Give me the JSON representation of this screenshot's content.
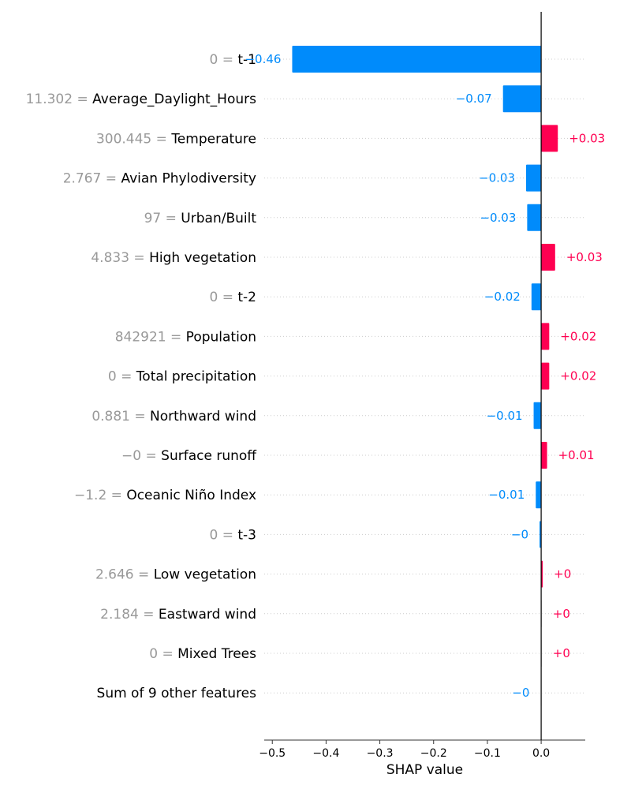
{
  "chart_data": {
    "type": "bar",
    "orientation": "horizontal",
    "xlabel": "SHAP value",
    "xlim": [
      -0.515,
      0.082
    ],
    "xticks": [
      -0.5,
      -0.4,
      -0.3,
      -0.2,
      -0.1,
      0.0
    ],
    "xtick_labels": [
      "−0.5",
      "−0.4",
      "−0.3",
      "−0.2",
      "−0.1",
      "0.0"
    ],
    "colors": {
      "positive": "#ff0051",
      "negative": "#008bfb",
      "zero": "#dddddd"
    },
    "features": [
      {
        "value": "0",
        "name": "t-1",
        "shap": -0.463,
        "label": "−0.46"
      },
      {
        "value": "11.302",
        "name": "Average_Daylight_Hours",
        "shap": -0.071,
        "label": "−0.07"
      },
      {
        "value": "300.445",
        "name": "Temperature",
        "shap": 0.031,
        "label": "+0.03"
      },
      {
        "value": "2.767",
        "name": "Avian Phylodiversity",
        "shap": -0.028,
        "label": "−0.03"
      },
      {
        "value": "97",
        "name": "Urban/Built",
        "shap": -0.026,
        "label": "−0.03"
      },
      {
        "value": "4.833",
        "name": "High vegetation",
        "shap": 0.026,
        "label": "+0.03"
      },
      {
        "value": "0",
        "name": "t-2",
        "shap": -0.018,
        "label": "−0.02"
      },
      {
        "value": "842921",
        "name": "Population",
        "shap": 0.015,
        "label": "+0.02"
      },
      {
        "value": "0",
        "name": "Total precipitation",
        "shap": 0.015,
        "label": "+0.02"
      },
      {
        "value": "0.881",
        "name": "Northward wind",
        "shap": -0.014,
        "label": "−0.01"
      },
      {
        "value": "−0",
        "name": "Surface runoff",
        "shap": 0.011,
        "label": "+0.01"
      },
      {
        "value": "−1.2",
        "name": "Oceanic Niño Index",
        "shap": -0.01,
        "label": "−0.01"
      },
      {
        "value": "0",
        "name": "t-3",
        "shap": -0.003,
        "label": "−0"
      },
      {
        "value": "2.646",
        "name": "Low vegetation",
        "shap": 0.003,
        "label": "+0"
      },
      {
        "value": "2.184",
        "name": "Eastward wind",
        "shap": 0.001,
        "label": "+0"
      },
      {
        "value": "0",
        "name": "Mixed Trees",
        "shap": 0.001,
        "label": "+0"
      },
      {
        "value": "",
        "name": "Sum of 9 other features",
        "shap": -0.001,
        "label": "−0"
      }
    ]
  }
}
